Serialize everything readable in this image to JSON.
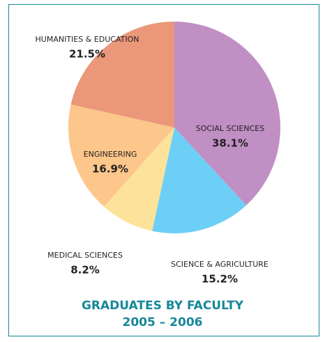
{
  "chart_data": {
    "type": "pie",
    "title": "GRADUATES BY FACULTY",
    "subtitle": "2005 – 2006",
    "categories": [
      "SOCIAL SCIENCES",
      "SCIENCE & AGRICULTURE",
      "MEDICAL SCIENCES",
      "ENGINEERING",
      "HUMANITIES & EDUCATION"
    ],
    "values": [
      38.1,
      15.2,
      8.2,
      16.9,
      21.5
    ],
    "value_labels": [
      "38.1%",
      "15.2%",
      "8.2%",
      "16.9%",
      "21.5%"
    ],
    "colors": [
      "#c08fc4",
      "#6dcff6",
      "#fde39a",
      "#fdc68a",
      "#ea977a"
    ]
  }
}
